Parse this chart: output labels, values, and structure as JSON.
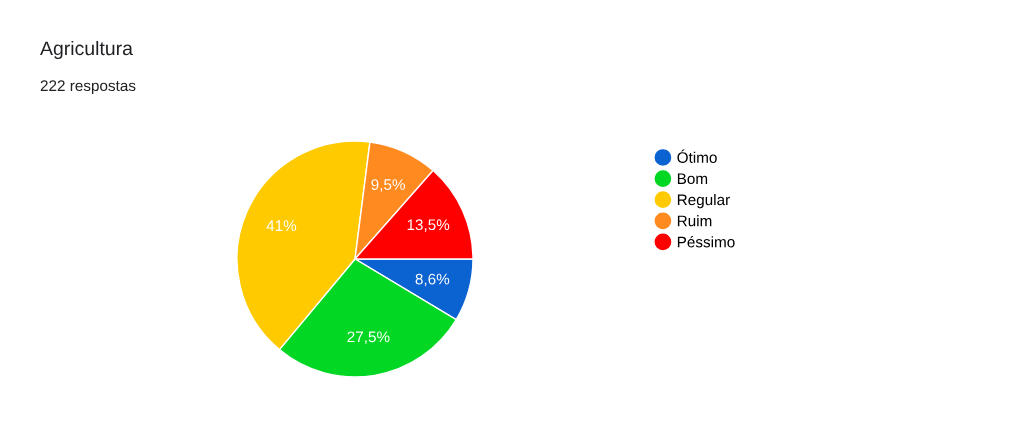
{
  "chart_data": {
    "type": "pie",
    "title": "Agricultura",
    "subtitle": "222 respostas",
    "categories": [
      "Ótimo",
      "Bom",
      "Regular",
      "Ruim",
      "Péssimo"
    ],
    "values": [
      8.6,
      27.5,
      41,
      9.5,
      13.5
    ],
    "value_labels": [
      "8,6%",
      "27,5%",
      "41%",
      "9,5%",
      "13,5%"
    ],
    "colors": [
      "#0b63d1",
      "#02d724",
      "#ffcb00",
      "#ff8a1f",
      "#ff0000"
    ],
    "legend": "right"
  }
}
